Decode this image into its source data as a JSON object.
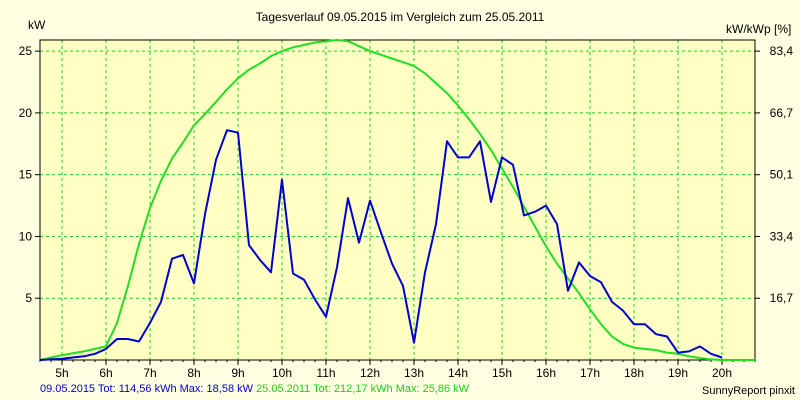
{
  "chart_data": {
    "type": "line",
    "title": "Tagesverlauf 09.05.2015 im Vergleich zum 25.05.2011",
    "ylabel_left": "kW",
    "ylabel_right": "kW/kWp [%]",
    "x_ticks": [
      "5h",
      "6h",
      "7h",
      "8h",
      "9h",
      "10h",
      "11h",
      "12h",
      "13h",
      "14h",
      "15h",
      "16h",
      "17h",
      "18h",
      "19h",
      "20h"
    ],
    "y_ticks_left": [
      "5",
      "10",
      "15",
      "20",
      "25"
    ],
    "y_ticks_right": [
      "16,7",
      "33,4",
      "50,1",
      "66,7",
      "83,4"
    ],
    "xlim": [
      4.5,
      20.75
    ],
    "ylim": [
      0,
      25.9
    ],
    "grid": true,
    "series": [
      {
        "name": "09.05.2015",
        "color": "#0000cc",
        "x": [
          4.5,
          5.0,
          5.25,
          5.5,
          5.75,
          6.0,
          6.25,
          6.5,
          6.75,
          7.0,
          7.25,
          7.5,
          7.75,
          8.0,
          8.25,
          8.5,
          8.75,
          9.0,
          9.25,
          9.5,
          9.75,
          10.0,
          10.25,
          10.5,
          10.75,
          11.0,
          11.25,
          11.5,
          11.75,
          12.0,
          12.25,
          12.5,
          12.75,
          13.0,
          13.25,
          13.5,
          13.75,
          14.0,
          14.25,
          14.5,
          14.75,
          15.0,
          15.25,
          15.5,
          15.75,
          16.0,
          16.25,
          16.5,
          16.75,
          17.0,
          17.25,
          17.5,
          17.75,
          18.0,
          18.25,
          18.5,
          18.75,
          19.0,
          19.25,
          19.5,
          19.75,
          20.0
        ],
        "y": [
          0,
          0.1,
          0.2,
          0.3,
          0.5,
          0.9,
          1.7,
          1.7,
          1.5,
          3.0,
          4.7,
          8.2,
          8.5,
          6.2,
          11.8,
          16.2,
          18.6,
          18.4,
          9.3,
          8.1,
          7.1,
          14.6,
          7.0,
          6.5,
          4.9,
          3.5,
          7.5,
          13.1,
          9.5,
          12.9,
          10.3,
          7.8,
          6.0,
          1.4,
          7.1,
          11.0,
          17.7,
          16.4,
          16.4,
          17.7,
          12.8,
          16.4,
          15.8,
          11.7,
          12.0,
          12.5,
          11.0,
          5.6,
          7.9,
          6.8,
          6.3,
          4.7,
          4.0,
          2.9,
          2.9,
          2.1,
          1.9,
          0.6,
          0.7,
          1.1,
          0.5,
          0.2
        ]
      },
      {
        "name": "25.05.2011",
        "color": "#22dd22",
        "x": [
          4.5,
          5.0,
          5.5,
          6.0,
          6.25,
          6.5,
          6.75,
          7.0,
          7.25,
          7.5,
          7.75,
          8.0,
          8.25,
          8.5,
          8.75,
          9.0,
          9.25,
          9.5,
          9.75,
          10.0,
          10.25,
          10.5,
          10.75,
          11.0,
          11.25,
          11.5,
          11.75,
          12.0,
          12.25,
          12.5,
          12.75,
          13.0,
          13.25,
          13.5,
          13.75,
          14.0,
          14.25,
          14.5,
          14.75,
          15.0,
          15.25,
          15.5,
          15.75,
          16.0,
          16.25,
          16.5,
          16.75,
          17.0,
          17.25,
          17.5,
          17.75,
          18.0,
          18.25,
          18.5,
          18.75,
          19.0,
          19.25,
          19.5,
          19.75,
          20.0,
          20.25,
          20.5,
          20.75
        ],
        "y": [
          0,
          0.4,
          0.7,
          1.1,
          3.0,
          6.0,
          9.4,
          12.3,
          14.5,
          16.3,
          17.6,
          19.0,
          19.9,
          20.9,
          21.9,
          22.8,
          23.5,
          24.0,
          24.6,
          25.0,
          25.3,
          25.5,
          25.7,
          25.8,
          25.9,
          25.8,
          25.4,
          25.0,
          24.7,
          24.4,
          24.1,
          23.8,
          23.2,
          22.4,
          21.6,
          20.6,
          19.5,
          18.3,
          17.0,
          15.5,
          14.0,
          12.4,
          10.8,
          9.2,
          7.8,
          6.6,
          5.4,
          4.1,
          2.9,
          1.9,
          1.3,
          1.0,
          0.9,
          0.8,
          0.6,
          0.5,
          0.3,
          0.15,
          0.05,
          0,
          0,
          0,
          0
        ]
      }
    ]
  },
  "footer": {
    "series1_label": "09.05.2015 Tot: 114,56 kWh Max: 18,58 kW",
    "series2_label": "25.05.2011 Tot: 212,17 kWh Max: 25,86 kW",
    "credit": "SunnyReport pinxit"
  }
}
